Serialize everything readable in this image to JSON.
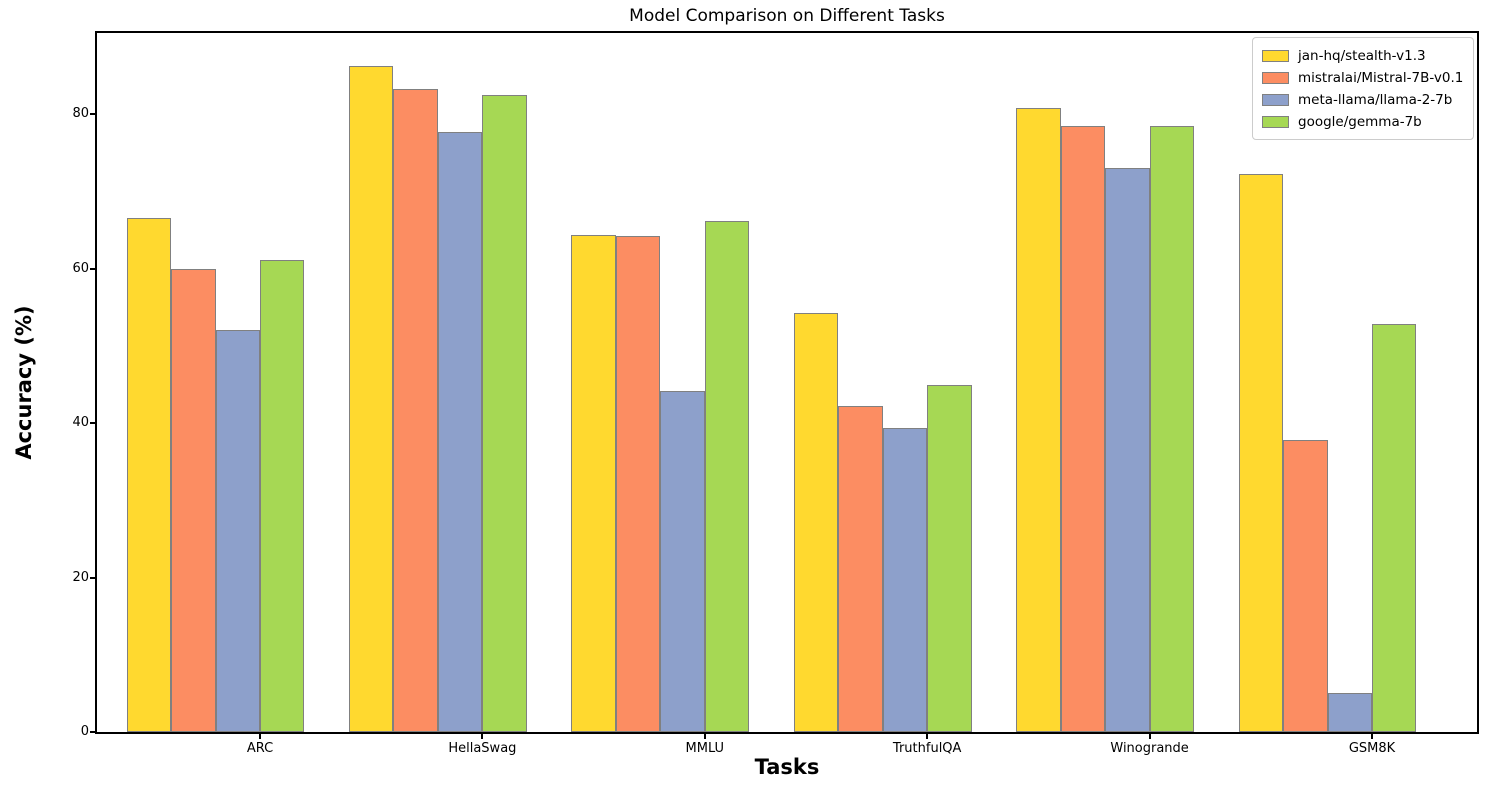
{
  "chart_data": {
    "type": "bar",
    "title": "Model Comparison on Different Tasks",
    "xlabel": "Tasks",
    "ylabel": "Accuracy (%)",
    "categories": [
      "ARC",
      "HellaSwag",
      "MMLU",
      "TruthfulQA",
      "Winogrande",
      "GSM8K"
    ],
    "series": [
      {
        "name": "jan-hq/stealth-v1.3",
        "color": "#FFD92F",
        "values": [
          66.5,
          86.2,
          64.4,
          54.3,
          80.8,
          72.3
        ]
      },
      {
        "name": "mistralai/Mistral-7B-v0.1",
        "color": "#FC8D62",
        "values": [
          60.0,
          83.3,
          64.2,
          42.2,
          78.4,
          37.8
        ]
      },
      {
        "name": "meta-llama/llama-2-7b",
        "color": "#8DA0CB",
        "values": [
          52.0,
          77.7,
          44.1,
          39.4,
          73.0,
          5.0
        ]
      },
      {
        "name": "google/gemma-7b",
        "color": "#A6D854",
        "values": [
          61.1,
          82.5,
          66.2,
          44.9,
          78.5,
          52.8
        ]
      }
    ],
    "ylim": [
      0,
      90.5
    ],
    "yticks": [
      0,
      20,
      40,
      60,
      80
    ],
    "grid": false,
    "legend_position": "upper right",
    "bar_edge_color": "#808080",
    "background_color": "#FFFFFF"
  }
}
